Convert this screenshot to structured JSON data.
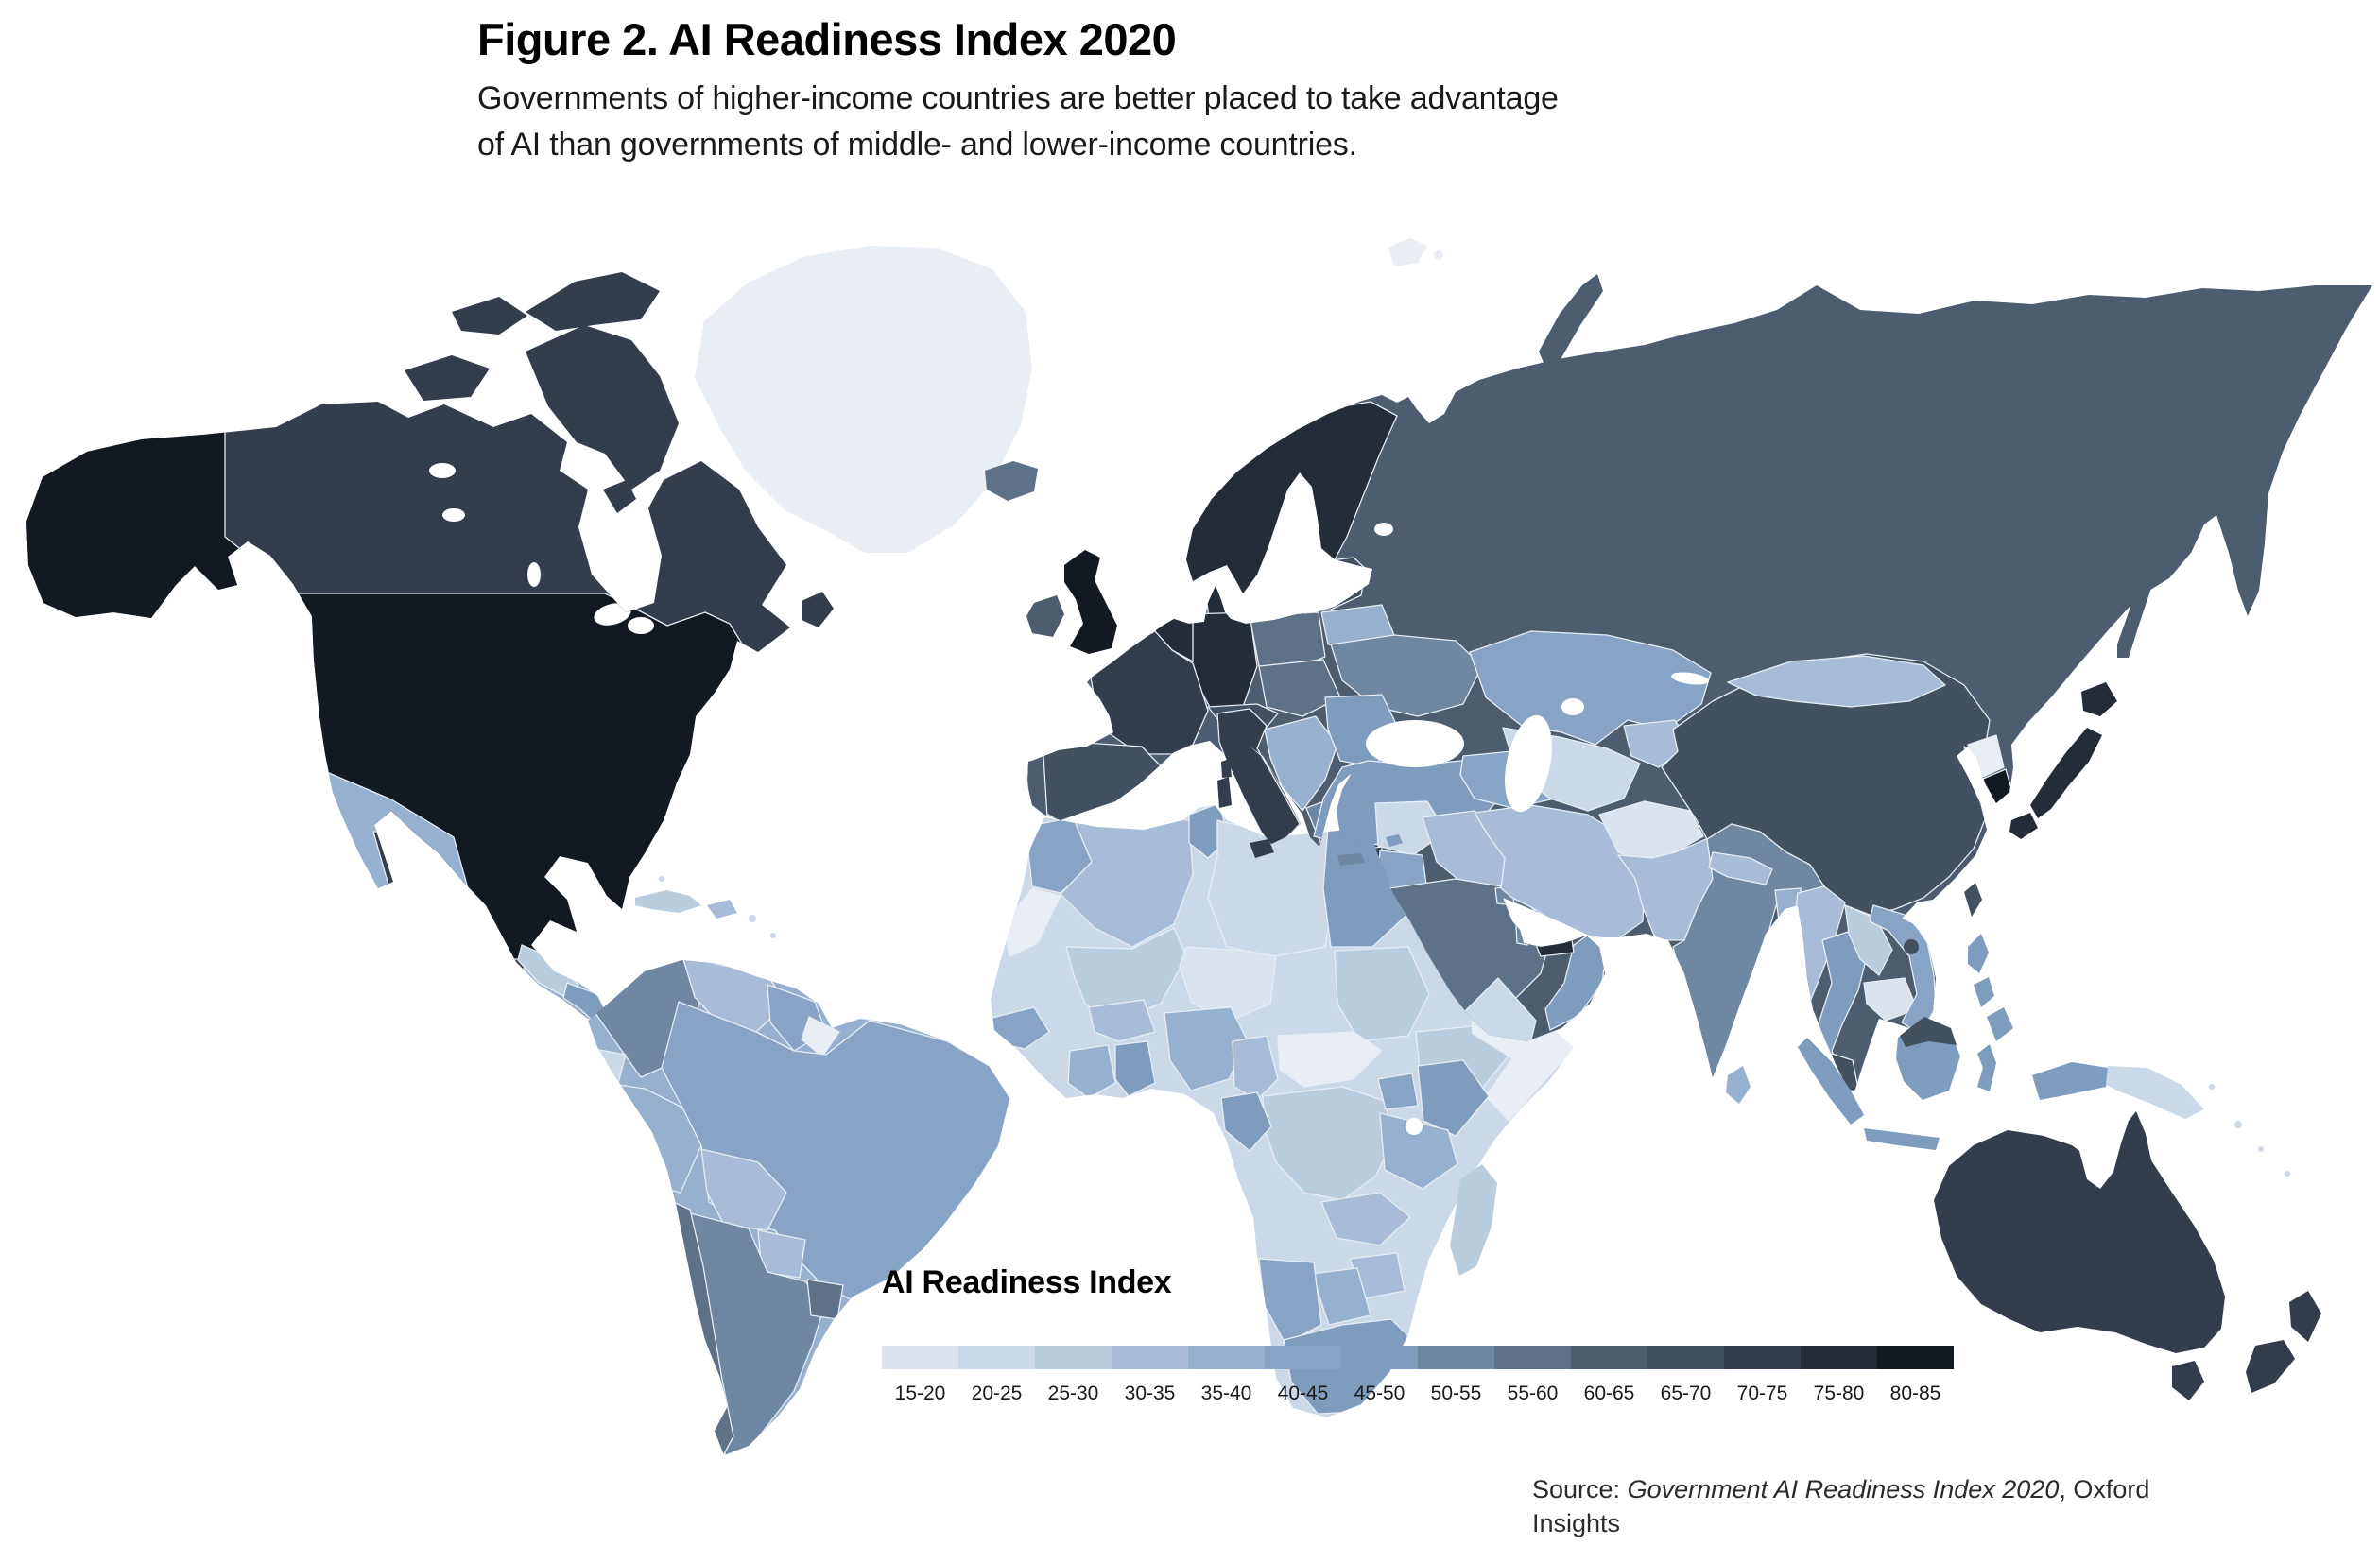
{
  "header": {
    "title": "Figure 2. AI Readiness Index 2020",
    "subtitle_line1": "Governments of higher-income countries are better placed to take advantage",
    "subtitle_line2": "of AI than governments of middle- and lower-income countries."
  },
  "legend": {
    "title": "AI Readiness Index",
    "nodata_color": "#e9edf4",
    "buckets": [
      {
        "label": "15-20",
        "color": "#dae3ee"
      },
      {
        "label": "20-25",
        "color": "#cbd8e8"
      },
      {
        "label": "25-30",
        "color": "#bacddf"
      },
      {
        "label": "30-35",
        "color": "#a7bcd8"
      },
      {
        "label": "35-40",
        "color": "#96b0cf"
      },
      {
        "label": "40-45",
        "color": "#87a3c5"
      },
      {
        "label": "45-50",
        "color": "#7e9cbe"
      },
      {
        "label": "50-55",
        "color": "#6e87a2"
      },
      {
        "label": "55-60",
        "color": "#5d7189"
      },
      {
        "label": "60-65",
        "color": "#4d5c6f"
      },
      {
        "label": "65-70",
        "color": "#42505f"
      },
      {
        "label": "70-75",
        "color": "#333d4b"
      },
      {
        "label": "75-80",
        "color": "#242c38"
      },
      {
        "label": "80-85",
        "color": "#131920"
      }
    ]
  },
  "source": {
    "prefix": "Source: ",
    "work": "Government AI Readiness Index 2020",
    "suffix": ", Oxford Insights"
  },
  "map": {
    "region_buckets": {
      "alaska": "80-85",
      "canada": "70-75",
      "canada-arctic": "70-75",
      "newfoundland": "70-75",
      "usa": "80-85",
      "mexico": "35-40",
      "central-america-north": "25-30",
      "central-america-south": "45-50",
      "cuba": "25-30",
      "hispaniola": "30-35",
      "caribbean-small": "20-25",
      "greenland": "nodata",
      "south-america-base": "35-40",
      "colombia": "50-55",
      "venezuela": "30-35",
      "guyanas": "40-45",
      "french-guiana": "nodata",
      "ecuador": "20-25",
      "peru": "35-40",
      "brazil": "40-45",
      "bolivia": "30-35",
      "paraguay": "30-35",
      "chile": "55-60",
      "argentina": "50-55",
      "uruguay": "55-60",
      "eurasia-base": "60-65",
      "nordics": "75-80",
      "denmark": "75-80",
      "baltics": "65-70",
      "belarus": "35-40",
      "ukraine": "50-55",
      "poland": "55-60",
      "germany": "75-80",
      "benelux": "75-80",
      "france": "70-75",
      "spain": "65-70",
      "portugal": "60-65",
      "alpine": "65-70",
      "italy": "70-75",
      "czech-hungary": "55-60",
      "balkans-west": "35-40",
      "romania-bulgaria": "45-50",
      "greece": "50-55",
      "turkey": "45-50",
      "caucasus": "40-45",
      "syria": "20-25",
      "israel": "70-75",
      "jordan": "40-45",
      "iraq": "30-35",
      "saudi-arabia": "55-60",
      "yemen": "20-25",
      "oman": "45-50",
      "uae": "75-80",
      "qatar": "50-55",
      "kuwait": "50-55",
      "kazakhstan": "40-45",
      "central-asia": "20-25",
      "kyrgyzstan-tajikistan": "30-35",
      "china": "65-70",
      "mongolia": "30-35",
      "iran": "30-35",
      "afghanistan": "15-20",
      "pakistan": "30-35",
      "india": "50-55",
      "nepal": "30-35",
      "bangladesh": "35-40",
      "myanmar": "30-35",
      "thailand": "45-50",
      "laos": "25-30",
      "cambodia": "15-20",
      "vietnam": "40-45",
      "malaysia": "65-70",
      "north-korea": "nodata",
      "south-korea": "80-85",
      "united-kingdom": "80-85",
      "ireland": "60-65",
      "iceland": "55-60",
      "svalbard": "nodata",
      "novaya-zemlya": "60-65",
      "sakhalin": "60-65",
      "japan": "75-80",
      "taiwan": "65-70",
      "hainan": "65-70",
      "philippines": "45-50",
      "indonesia": "45-50",
      "malaysia-borneo": "65-70",
      "papua-new-guinea": "20-25",
      "sri-lanka": "35-40",
      "corsica": "70-75",
      "sardinia": "70-75",
      "sicily": "70-75",
      "crete": "50-55",
      "cyprus": "45-50",
      "pacific-islands": "20-25",
      "africa-base": "20-25",
      "morocco": "40-45",
      "western-sahara": "nodata",
      "algeria": "30-35",
      "tunisia": "45-50",
      "libya": "20-25",
      "egypt": "45-50",
      "mali": "25-30",
      "niger": "15-20",
      "sudan": "25-30",
      "ethiopia": "25-30",
      "somalia": "nodata",
      "senegal": "40-45",
      "cote-divoire": "35-40",
      "ghana": "45-50",
      "burkina-faso": "30-35",
      "nigeria": "35-40",
      "cameroon": "30-35",
      "car-south-sudan": "nodata",
      "drc": "25-30",
      "gabon-congo": "45-50",
      "uganda": "40-45",
      "kenya": "45-50",
      "tanzania": "35-40",
      "zambia": "30-35",
      "zimbabwe": "30-35",
      "botswana": "35-40",
      "namibia": "40-45",
      "south-africa": "45-50",
      "madagascar": "25-30",
      "australia": "70-75",
      "tasmania": "70-75",
      "new-zealand": "70-75"
    }
  }
}
